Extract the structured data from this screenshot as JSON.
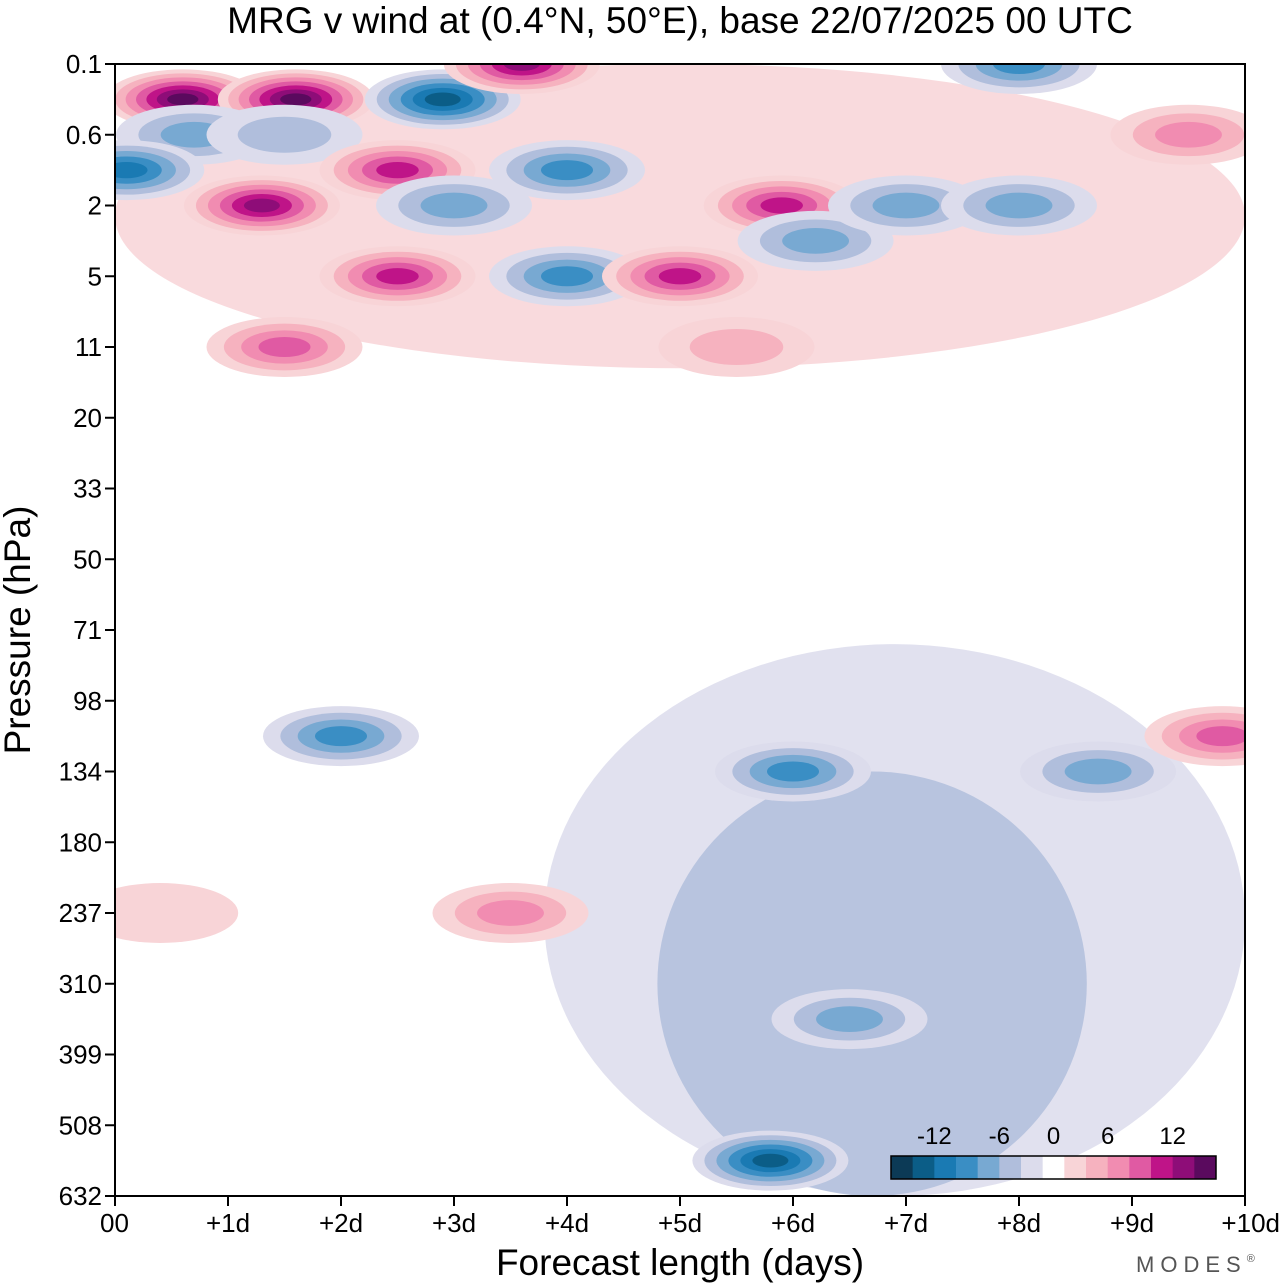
{
  "chart_data": {
    "type": "heatmap",
    "title": "MRG v wind at (0.4°N, 50°E),  base 22/07/2025  00 UTC",
    "xlabel": "Forecast length (days)",
    "ylabel": "Pressure (hPa)",
    "x_ticks": [
      "00",
      "+1d",
      "+2d",
      "+3d",
      "+4d",
      "+5d",
      "+6d",
      "+7d",
      "+8d",
      "+9d",
      "+10d"
    ],
    "x_range": [
      0,
      10
    ],
    "y_ticks": [
      "0.1",
      "0.6",
      "2",
      "5",
      "11",
      "20",
      "33",
      "50",
      "71",
      "98",
      "134",
      "180",
      "237",
      "310",
      "399",
      "508",
      "632"
    ],
    "y_scale": "index (top = 0.1 hPa, bottom = 632 hPa)",
    "colorbar": {
      "levels": [
        -16,
        -14,
        -12,
        -10,
        -8,
        -6,
        -4,
        -2,
        2,
        4,
        6,
        8,
        10,
        12,
        14,
        16
      ],
      "labels": [
        "-12",
        "-6",
        "0",
        "6",
        "12"
      ],
      "colors": [
        "#0c3a56",
        "#0b5d87",
        "#1a7ab3",
        "#3a8ec4",
        "#78a9d2",
        "#b0bedc",
        "#dcdcec",
        "#ffffff",
        "#f8d4d7",
        "#f6b2bf",
        "#f18cb1",
        "#e05aa3",
        "#bf1488",
        "#8e0d78",
        "#5a0a5e"
      ]
    },
    "cells": [
      {
        "day": 0.6,
        "p": "0.1-0.6",
        "v": 15
      },
      {
        "day": 1.6,
        "p": "0.1-0.6",
        "v": 16
      },
      {
        "day": 2.9,
        "p": "0.1-0.6",
        "v": -14
      },
      {
        "day": 3.6,
        "p": "0.1",
        "v": 14
      },
      {
        "day": 8.0,
        "p": "0.1",
        "v": -10
      },
      {
        "day": 0.7,
        "p": "0.6",
        "v": -7
      },
      {
        "day": 1.5,
        "p": "0.6",
        "v": -6
      },
      {
        "day": 2.5,
        "p": "0.6-2",
        "v": 12
      },
      {
        "day": 0.1,
        "p": "0.6-2",
        "v": -12
      },
      {
        "day": 3.0,
        "p": "2",
        "v": -7
      },
      {
        "day": 1.3,
        "p": "2",
        "v": 14
      },
      {
        "day": 4.0,
        "p": "0.6-2",
        "v": -10
      },
      {
        "day": 5.9,
        "p": "2",
        "v": 12
      },
      {
        "day": 9.5,
        "p": "0.6",
        "v": 8
      },
      {
        "day": 2.5,
        "p": "5",
        "v": 12
      },
      {
        "day": 4.0,
        "p": "5",
        "v": -10
      },
      {
        "day": 5.0,
        "p": "5",
        "v": 11
      },
      {
        "day": 6.2,
        "p": "2-5",
        "v": -8
      },
      {
        "day": 7.0,
        "p": "2",
        "v": -7
      },
      {
        "day": 8.0,
        "p": "2",
        "v": -7
      },
      {
        "day": 1.5,
        "p": "11",
        "v": 10
      },
      {
        "day": 5.5,
        "p": "11",
        "v": 6
      },
      {
        "day": 2.0,
        "p": "98-134",
        "v": -9
      },
      {
        "day": 6.0,
        "p": "134",
        "v": -10
      },
      {
        "day": 8.7,
        "p": "134",
        "v": -8
      },
      {
        "day": 3.5,
        "p": "237",
        "v": 8
      },
      {
        "day": 0.4,
        "p": "237",
        "v": 4
      },
      {
        "day": 9.8,
        "p": "98-134",
        "v": 10
      },
      {
        "day": 5.8,
        "p": "508-632",
        "v": -14
      },
      {
        "day": 6.5,
        "p": "310-399",
        "v": -7
      }
    ]
  },
  "brand": {
    "logo": "MODES",
    "mark": "®"
  }
}
